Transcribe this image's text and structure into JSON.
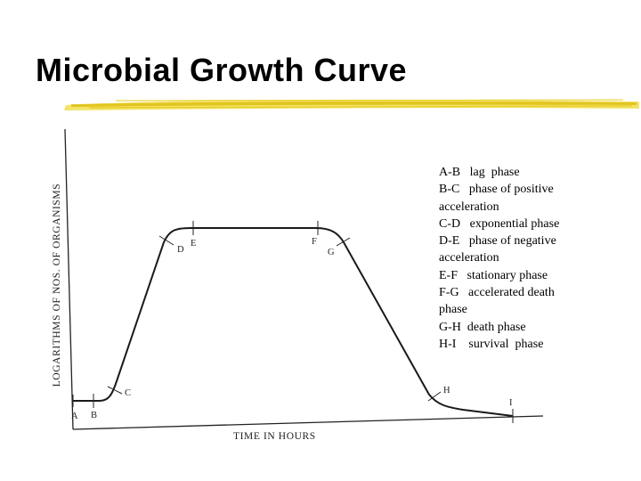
{
  "title": "Microbial Growth Curve",
  "colors": {
    "underline_dark": "#d9b800",
    "underline_light": "#f3e36a",
    "curve": "#1a1a1a"
  },
  "axes": {
    "y_label": "LOGARITHMS OF NOS. OF ORGANISMS",
    "x_label": "TIME IN HOURS"
  },
  "points": [
    {
      "id": "A",
      "label": "A"
    },
    {
      "id": "B",
      "label": "B"
    },
    {
      "id": "C",
      "label": "C"
    },
    {
      "id": "D",
      "label": "D"
    },
    {
      "id": "E",
      "label": "E"
    },
    {
      "id": "F",
      "label": "F"
    },
    {
      "id": "G",
      "label": "G"
    },
    {
      "id": "H",
      "label": "H"
    },
    {
      "id": "I",
      "label": "I"
    }
  ],
  "legend": [
    "A-B   lag  phase",
    "B-C   phase of positive",
    "acceleration",
    "C-D   exponential phase",
    "D-E   phase of negative",
    "acceleration",
    "E-F   stationary phase",
    "F-G   accelerated death",
    "phase",
    "G-H  death phase",
    "H-I    survival  phase"
  ]
}
